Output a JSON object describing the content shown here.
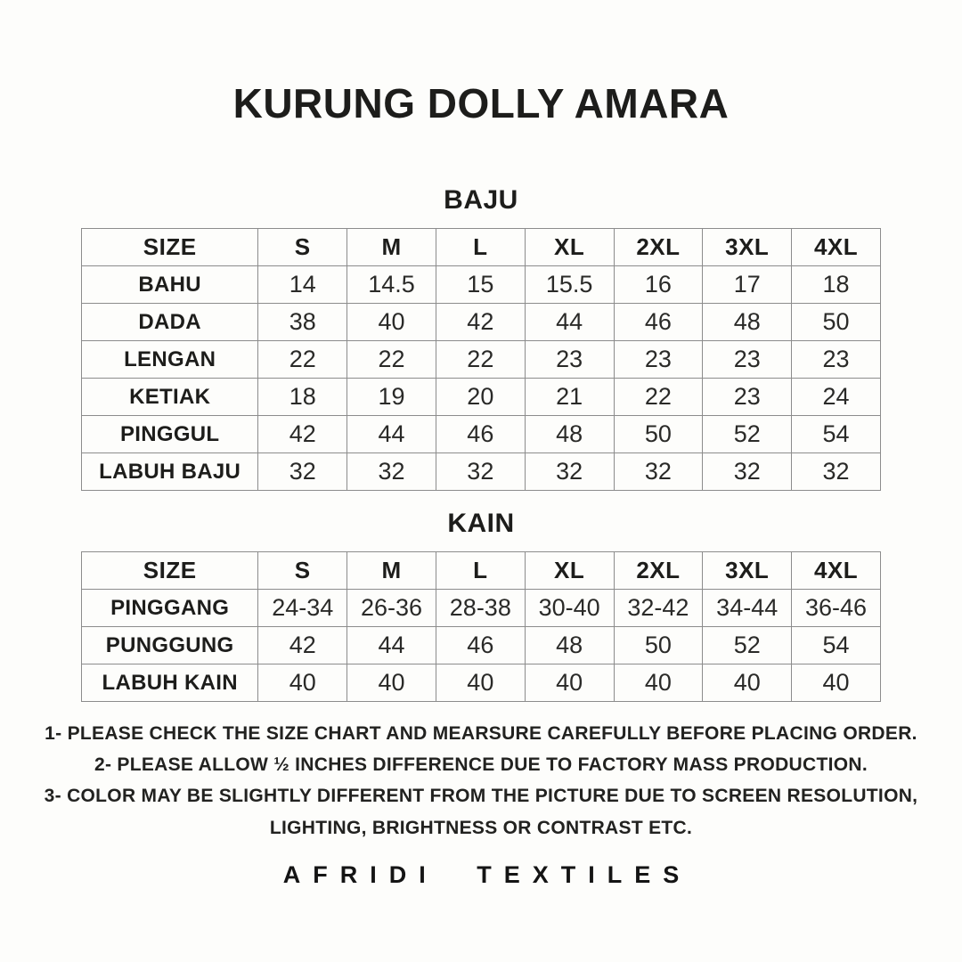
{
  "page": {
    "title": "KURUNG DOLLY AMARA",
    "brand": "AFRIDI TEXTILES"
  },
  "colors": {
    "background": "#fdfdfb",
    "text": "#1d1d1b",
    "table_border": "#8c8c8c"
  },
  "tables": [
    {
      "section_title": "BAJU",
      "columns": [
        "SIZE",
        "S",
        "M",
        "L",
        "XL",
        "2XL",
        "3XL",
        "4XL"
      ],
      "rows": [
        {
          "label": "BAHU",
          "values": [
            "14",
            "14.5",
            "15",
            "15.5",
            "16",
            "17",
            "18"
          ]
        },
        {
          "label": "DADA",
          "values": [
            "38",
            "40",
            "42",
            "44",
            "46",
            "48",
            "50"
          ]
        },
        {
          "label": "LENGAN",
          "values": [
            "22",
            "22",
            "22",
            "23",
            "23",
            "23",
            "23"
          ]
        },
        {
          "label": "KETIAK",
          "values": [
            "18",
            "19",
            "20",
            "21",
            "22",
            "23",
            "24"
          ]
        },
        {
          "label": "PINGGUL",
          "values": [
            "42",
            "44",
            "46",
            "48",
            "50",
            "52",
            "54"
          ]
        },
        {
          "label": "LABUH BAJU",
          "values": [
            "32",
            "32",
            "32",
            "32",
            "32",
            "32",
            "32"
          ]
        }
      ]
    },
    {
      "section_title": "KAIN",
      "columns": [
        "SIZE",
        "S",
        "M",
        "L",
        "XL",
        "2XL",
        "3XL",
        "4XL"
      ],
      "rows": [
        {
          "label": "PINGGANG",
          "values": [
            "24-34",
            "26-36",
            "28-38",
            "30-40",
            "32-42",
            "34-44",
            "36-46"
          ]
        },
        {
          "label": "PUNGGUNG",
          "values": [
            "42",
            "44",
            "46",
            "48",
            "50",
            "52",
            "54"
          ]
        },
        {
          "label": "LABUH KAIN",
          "values": [
            "40",
            "40",
            "40",
            "40",
            "40",
            "40",
            "40"
          ]
        }
      ]
    }
  ],
  "notes": [
    "1- PLEASE CHECK THE SIZE CHART AND MEARSURE CAREFULLY BEFORE PLACING ORDER.",
    "2-  PLEASE ALLOW ½ INCHES DIFFERENCE DUE TO FACTORY MASS PRODUCTION.",
    "3-  COLOR MAY BE SLIGHTLY DIFFERENT FROM THE PICTURE DUE TO SCREEN RESOLUTION,",
    "LIGHTING, BRIGHTNESS OR CONTRAST ETC."
  ]
}
